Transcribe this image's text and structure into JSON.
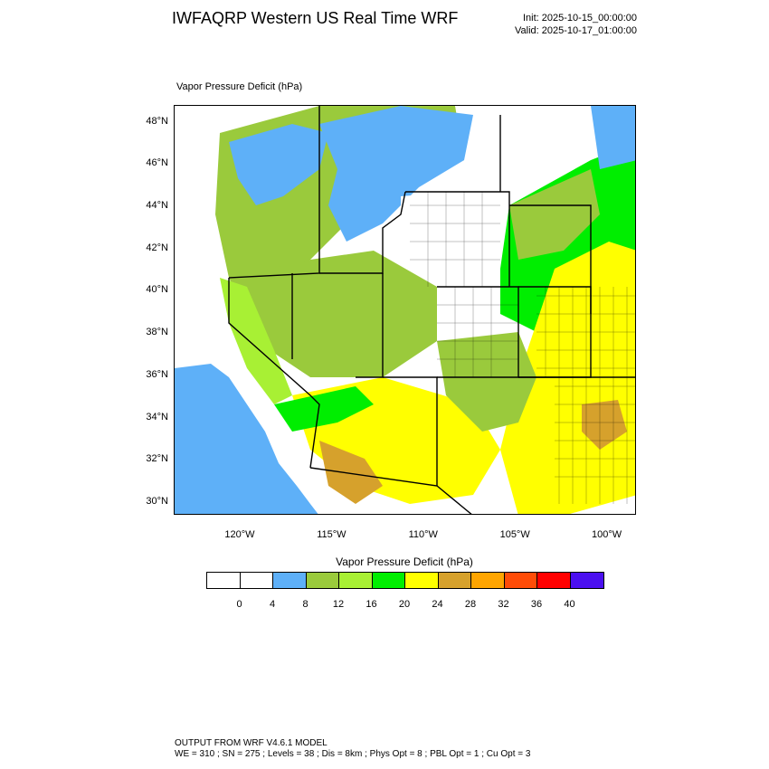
{
  "header": {
    "title": "IWFAQRP Western US Real Time WRF",
    "init": "Init: 2025-10-15_00:00:00",
    "valid": "Valid: 2025-10-17_01:00:00"
  },
  "map": {
    "field_label": "Vapor Pressure Deficit   (hPa)",
    "lat_labels": [
      "48°N",
      "46°N",
      "44°N",
      "42°N",
      "40°N",
      "38°N",
      "36°N",
      "34°N",
      "32°N",
      "30°N"
    ],
    "lon_labels": [
      "120°W",
      "115°W",
      "110°W",
      "105°W",
      "100°W"
    ],
    "lat_values": [
      48,
      46,
      44,
      42,
      40,
      38,
      36,
      34,
      32,
      30
    ],
    "lon_values": [
      -120,
      -115,
      -110,
      -105,
      -100
    ],
    "extent": {
      "lon_min": -123.6,
      "lon_max": -98.4,
      "lat_min": 29.4,
      "lat_max": 48.8
    },
    "ocean_color": "#5eb0f8"
  },
  "colorbar": {
    "title": "Vapor Pressure Deficit  (hPa)",
    "labels": [
      "0",
      "4",
      "8",
      "12",
      "16",
      "20",
      "24",
      "28",
      "32",
      "36",
      "40"
    ],
    "colors": [
      "#ffffff",
      "#ffffff",
      "#5eb0f8",
      "#9aca3c",
      "#a8f034",
      "#00ee00",
      "#ffff00",
      "#d6a12c",
      "#ffa500",
      "#ff4c08",
      "#ff0000",
      "#4b10f0"
    ]
  },
  "footer": {
    "line1": "OUTPUT FROM WRF V4.6.1 MODEL",
    "line2": "WE = 310 ; SN = 275 ; Levels = 38 ; Dis = 8km ; Phys Opt = 8 ; PBL Opt = 1 ; Cu Opt = 3"
  }
}
